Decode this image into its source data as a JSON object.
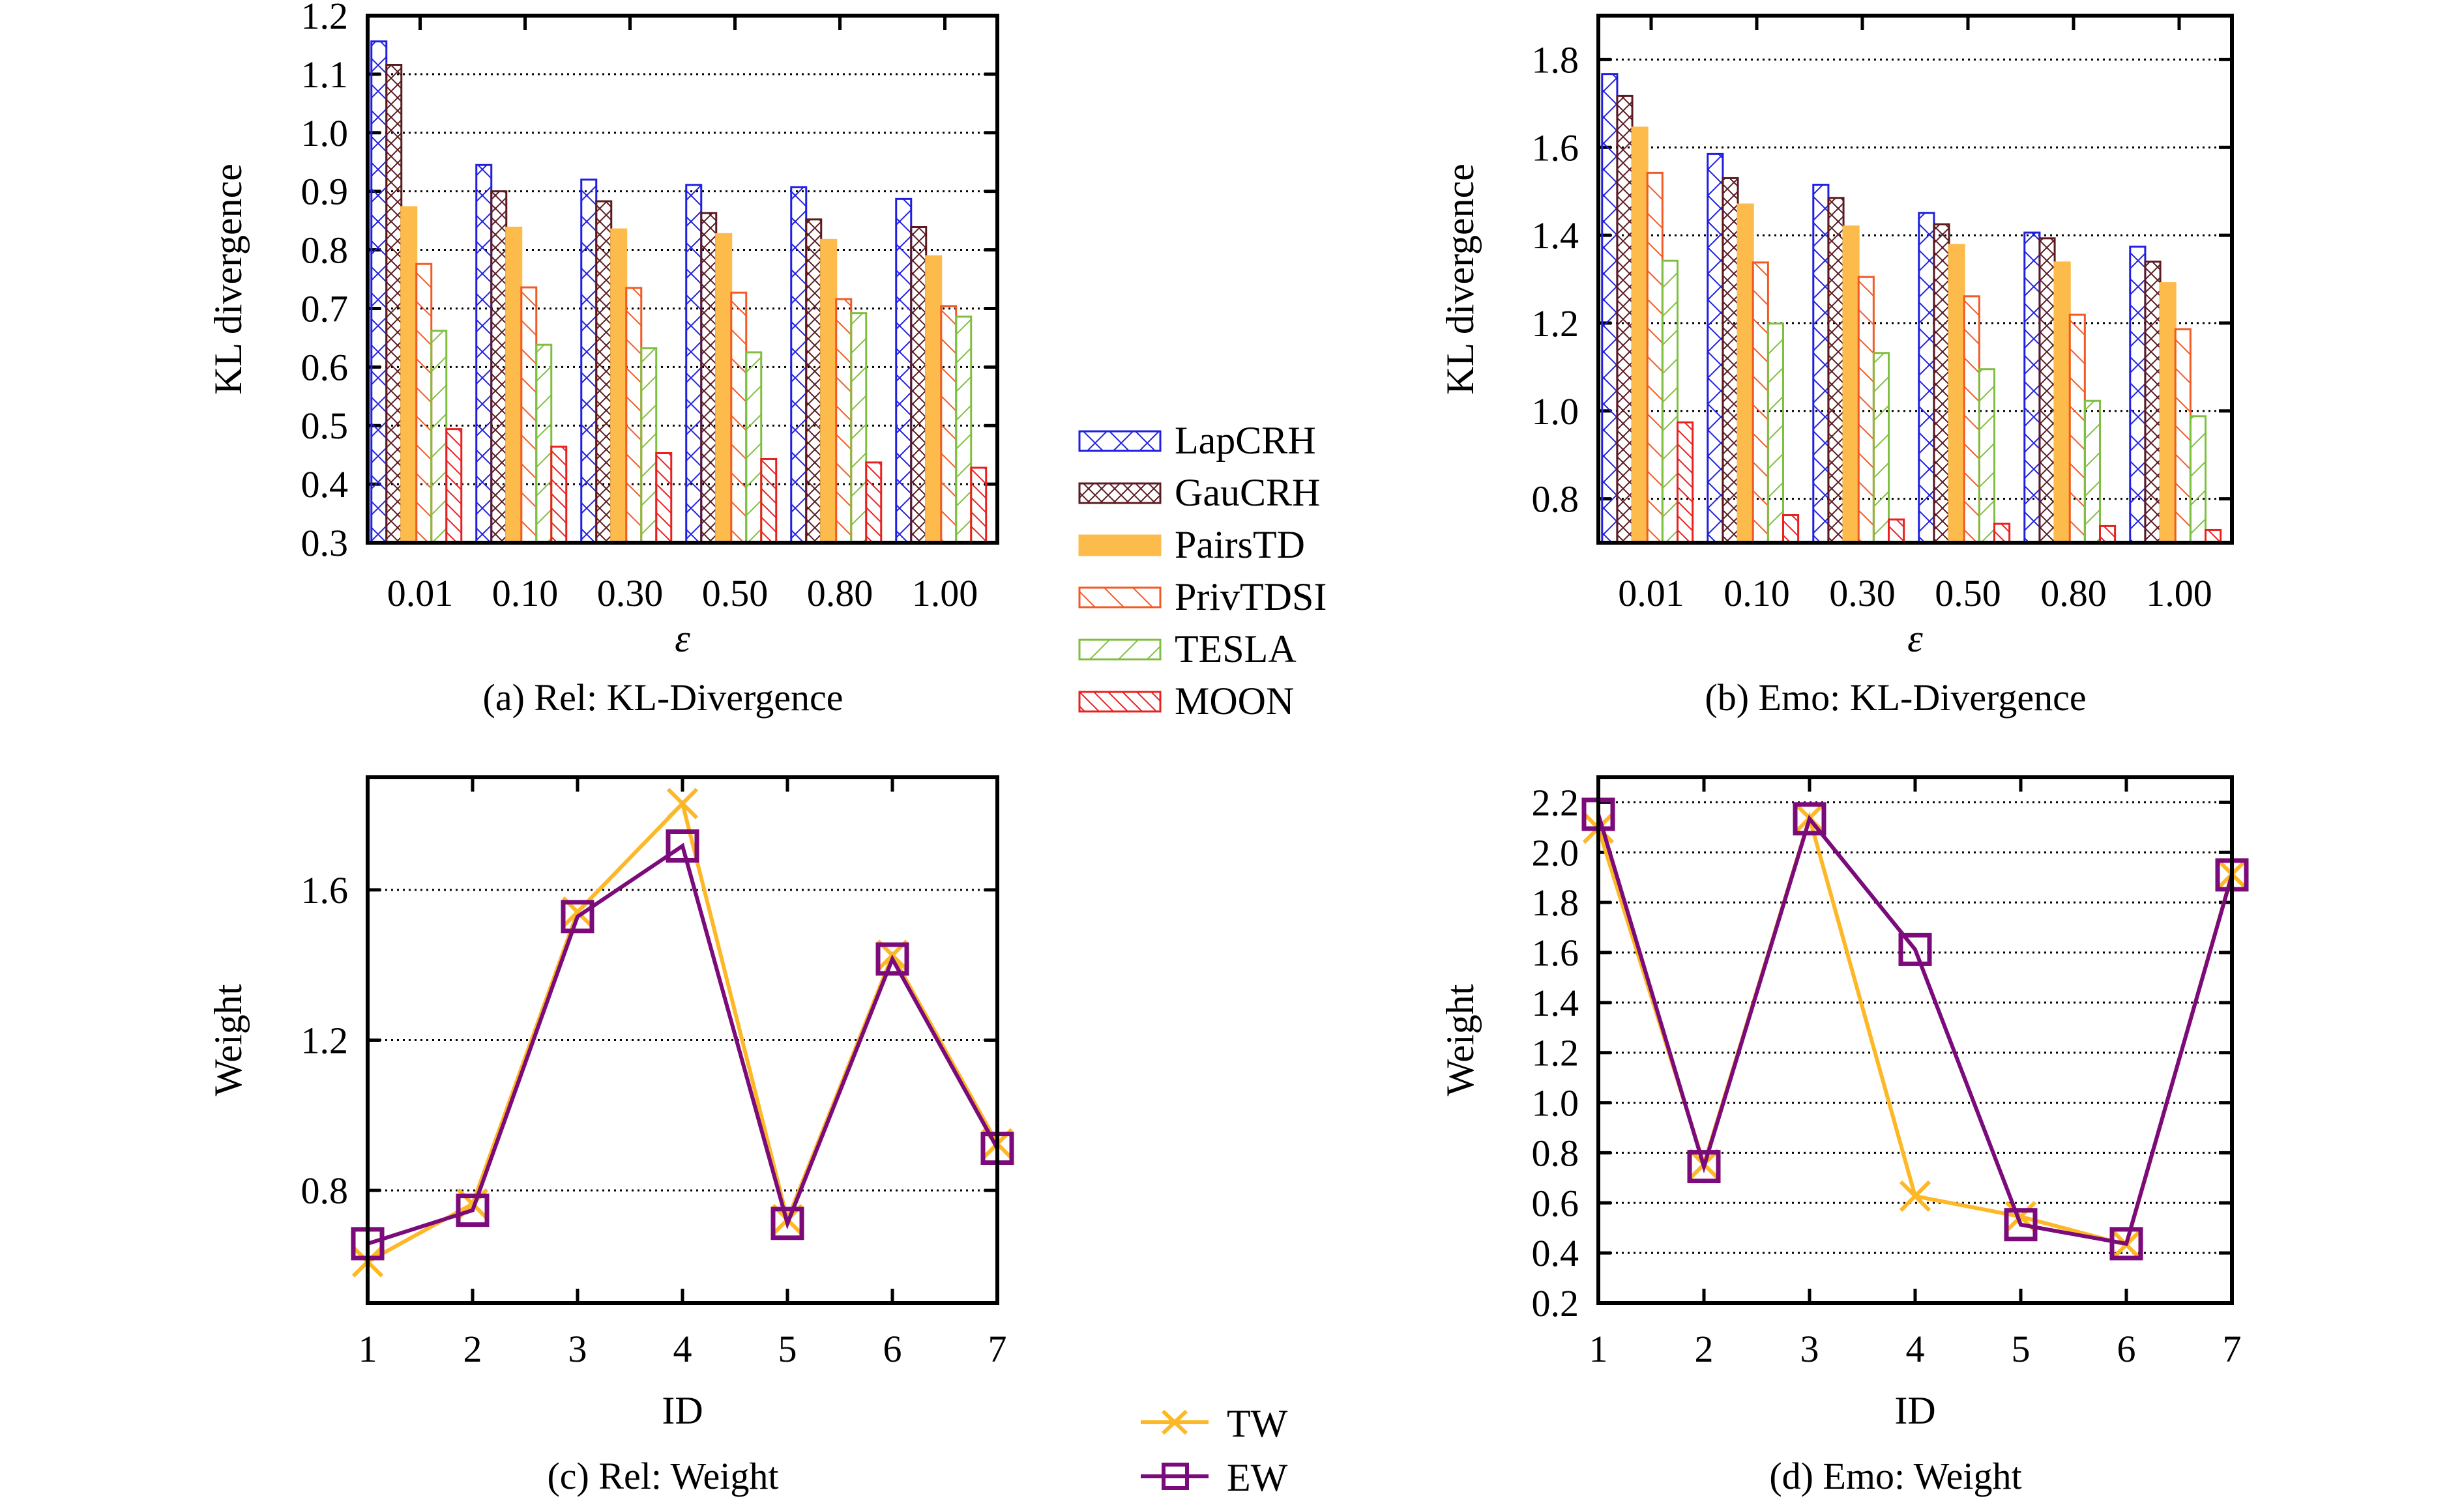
{
  "figure": {
    "legend_bars": [
      {
        "name": "LapCRH",
        "color": "#1f1fe0",
        "pattern": "cross-wide"
      },
      {
        "name": "GauCRH",
        "color": "#5a1a1f",
        "pattern": "cross-dense"
      },
      {
        "name": "PairsTD",
        "color": "#fdbb4c",
        "pattern": "solid"
      },
      {
        "name": "PrivTDSI",
        "color": "#f25a24",
        "pattern": "diag-back"
      },
      {
        "name": "TESLA",
        "color": "#7fbf3f",
        "pattern": "diag-fwd"
      },
      {
        "name": "MOON",
        "color": "#e82020",
        "pattern": "diag-back-dense"
      }
    ],
    "legend_lines": [
      {
        "name": "TW",
        "color": "#fdb827",
        "marker": "x"
      },
      {
        "name": "EW",
        "color": "#7b0a7a",
        "marker": "square"
      }
    ]
  },
  "chart_data": [
    {
      "id": "a",
      "type": "bar",
      "caption": "(a) Rel: KL-Divergence",
      "xlabel": "ε",
      "ylabel": "KL divergence",
      "categories": [
        "0.01",
        "0.10",
        "0.30",
        "0.50",
        "0.80",
        "1.00"
      ],
      "ylim": [
        0.3,
        1.2
      ],
      "yticks": [
        0.3,
        0.4,
        0.5,
        0.6,
        0.7,
        0.8,
        0.9,
        1.0,
        1.1,
        1.2
      ],
      "ytick_labels": [
        "0.3",
        "0.4",
        "0.5",
        "0.6",
        "0.7",
        "0.8",
        "0.9",
        "1.0",
        "1.1",
        "1.2"
      ],
      "grid": true,
      "series": [
        {
          "name": "LapCRH",
          "values": [
            1.156,
            0.945,
            0.92,
            0.911,
            0.907,
            0.887
          ]
        },
        {
          "name": "GauCRH",
          "values": [
            1.116,
            0.9,
            0.883,
            0.863,
            0.852,
            0.839
          ]
        },
        {
          "name": "PairsTD",
          "values": [
            0.873,
            0.838,
            0.835,
            0.827,
            0.817,
            0.789
          ]
        },
        {
          "name": "PrivTDSI",
          "values": [
            0.776,
            0.736,
            0.735,
            0.727,
            0.716,
            0.704
          ]
        },
        {
          "name": "TESLA",
          "values": [
            0.662,
            0.638,
            0.632,
            0.625,
            0.692,
            0.686
          ]
        },
        {
          "name": "MOON",
          "values": [
            0.494,
            0.464,
            0.453,
            0.443,
            0.437,
            0.428
          ]
        }
      ]
    },
    {
      "id": "b",
      "type": "bar",
      "caption": "(b) Emo: KL-Divergence",
      "xlabel": "ε",
      "ylabel": "KL divergence",
      "categories": [
        "0.01",
        "0.10",
        "0.30",
        "0.50",
        "0.80",
        "1.00"
      ],
      "ylim": [
        0.7,
        1.9
      ],
      "yticks": [
        0.8,
        1.0,
        1.2,
        1.4,
        1.6,
        1.8
      ],
      "ytick_labels": [
        "0.8",
        "1.0",
        "1.2",
        "1.4",
        "1.6",
        "1.8"
      ],
      "grid": true,
      "series": [
        {
          "name": "LapCRH",
          "values": [
            1.767,
            1.585,
            1.515,
            1.451,
            1.406,
            1.374
          ]
        },
        {
          "name": "GauCRH",
          "values": [
            1.717,
            1.53,
            1.485,
            1.425,
            1.393,
            1.34
          ]
        },
        {
          "name": "PairsTD",
          "values": [
            1.645,
            1.47,
            1.42,
            1.378,
            1.338,
            1.291
          ]
        },
        {
          "name": "PrivTDSI",
          "values": [
            1.542,
            1.338,
            1.305,
            1.261,
            1.219,
            1.186
          ]
        },
        {
          "name": "TESLA",
          "values": [
            1.342,
            1.199,
            1.132,
            1.095,
            1.023,
            0.988
          ]
        },
        {
          "name": "MOON",
          "values": [
            0.974,
            0.763,
            0.753,
            0.743,
            0.738,
            0.729
          ]
        }
      ]
    },
    {
      "id": "c",
      "type": "line",
      "caption": "(c) Rel: Weight",
      "xlabel": "ID",
      "ylabel": "Weight",
      "x": [
        1,
        2,
        3,
        4,
        5,
        6,
        7
      ],
      "xtick_labels": [
        "1",
        "2",
        "3",
        "4",
        "5",
        "6",
        "7"
      ],
      "xlim": [
        1,
        7
      ],
      "ylim": [
        0.5,
        1.9
      ],
      "yticks": [
        0.8,
        1.2,
        1.6
      ],
      "ytick_labels": [
        "0.8",
        "1.2",
        "1.6"
      ],
      "grid": true,
      "series": [
        {
          "name": "TW",
          "values": [
            0.61,
            0.764,
            1.541,
            1.83,
            0.722,
            1.426,
            0.924
          ]
        },
        {
          "name": "EW",
          "values": [
            0.658,
            0.747,
            1.529,
            1.717,
            0.712,
            1.416,
            0.912
          ]
        }
      ]
    },
    {
      "id": "d",
      "type": "line",
      "caption": "(d) Emo: Weight",
      "xlabel": "ID",
      "ylabel": "Weight",
      "x": [
        1,
        2,
        3,
        4,
        5,
        6,
        7
      ],
      "xtick_labels": [
        "1",
        "2",
        "3",
        "4",
        "5",
        "6",
        "7"
      ],
      "xlim": [
        1,
        7
      ],
      "ylim": [
        0.2,
        2.3
      ],
      "yticks": [
        0.2,
        0.4,
        0.6,
        0.8,
        1.0,
        1.2,
        1.4,
        1.6,
        1.8,
        2.0,
        2.2
      ],
      "ytick_labels": [
        "0.2",
        "0.4",
        "0.6",
        "0.8",
        "1.0",
        "1.2",
        "1.4",
        "1.6",
        "1.8",
        "2.0",
        "2.2"
      ],
      "grid": true,
      "series": [
        {
          "name": "TW",
          "values": [
            2.097,
            0.754,
            2.137,
            0.627,
            0.545,
            0.433,
            1.913
          ]
        },
        {
          "name": "EW",
          "values": [
            2.152,
            0.745,
            2.134,
            1.612,
            0.513,
            0.437,
            1.91
          ]
        }
      ]
    }
  ]
}
